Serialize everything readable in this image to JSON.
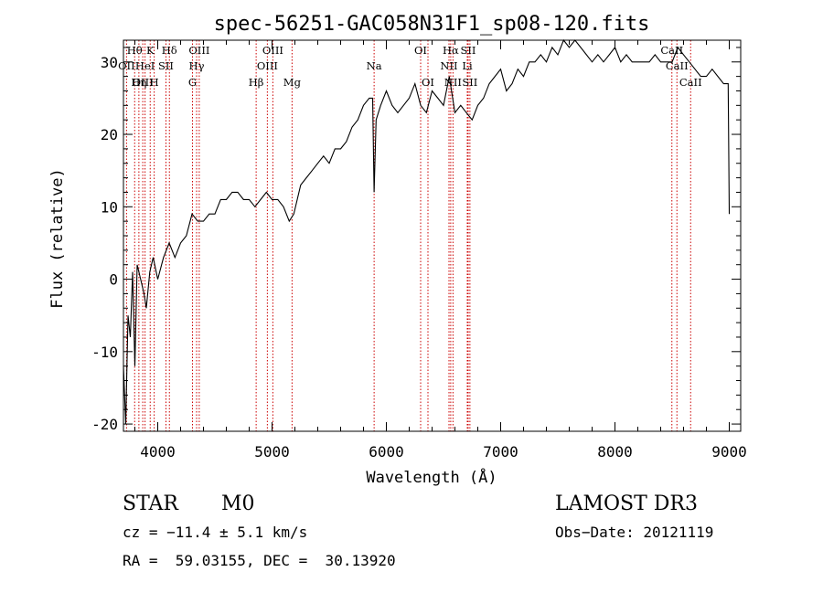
{
  "chart_data": {
    "type": "line",
    "title": "spec-56251-GAC058N31F1_sp08-120.fits",
    "xlabel": "Wavelength (Å)",
    "ylabel": "Flux (relative)",
    "xlim": [
      3700,
      9100
    ],
    "ylim": [
      -21,
      33
    ],
    "xticks": [
      4000,
      5000,
      6000,
      7000,
      8000,
      9000
    ],
    "yticks": [
      -20,
      -10,
      0,
      10,
      20,
      30
    ],
    "series": [
      {
        "name": "flux",
        "x": [
          3700,
          3720,
          3740,
          3760,
          3780,
          3800,
          3820,
          3850,
          3880,
          3900,
          3930,
          3960,
          4000,
          4050,
          4100,
          4150,
          4200,
          4250,
          4300,
          4350,
          4400,
          4450,
          4500,
          4550,
          4600,
          4650,
          4700,
          4750,
          4800,
          4850,
          4900,
          4950,
          5000,
          5050,
          5100,
          5150,
          5190,
          5250,
          5300,
          5350,
          5400,
          5450,
          5500,
          5550,
          5600,
          5650,
          5700,
          5750,
          5800,
          5850,
          5880,
          5893,
          5910,
          5950,
          6000,
          6050,
          6100,
          6150,
          6200,
          6250,
          6300,
          6350,
          6400,
          6450,
          6500,
          6550,
          6600,
          6650,
          6700,
          6750,
          6800,
          6850,
          6900,
          6950,
          7000,
          7050,
          7100,
          7150,
          7200,
          7250,
          7300,
          7350,
          7400,
          7450,
          7500,
          7550,
          7600,
          7650,
          7700,
          7750,
          7800,
          7850,
          7900,
          7950,
          8000,
          8050,
          8100,
          8150,
          8200,
          8250,
          8300,
          8350,
          8400,
          8450,
          8500,
          8550,
          8600,
          8650,
          8700,
          8750,
          8800,
          8850,
          8900,
          8950,
          8990,
          9000
        ],
        "y": [
          -12,
          -20,
          -5,
          -8,
          1,
          -12,
          2,
          0,
          -2,
          -4,
          1,
          3,
          0,
          3,
          5,
          3,
          5,
          6,
          9,
          8,
          8,
          9,
          9,
          11,
          11,
          12,
          12,
          11,
          11,
          10,
          11,
          12,
          11,
          11,
          10,
          8,
          9,
          13,
          14,
          15,
          16,
          17,
          16,
          18,
          18,
          19,
          21,
          22,
          24,
          25,
          25,
          12,
          22,
          24,
          26,
          24,
          23,
          24,
          25,
          27,
          24,
          23,
          26,
          25,
          24,
          28,
          23,
          24,
          23,
          22,
          24,
          25,
          27,
          28,
          29,
          26,
          27,
          29,
          28,
          30,
          30,
          31,
          30,
          32,
          31,
          33,
          32,
          33,
          32,
          31,
          30,
          31,
          30,
          31,
          32,
          30,
          31,
          30,
          30,
          30,
          30,
          31,
          30,
          30,
          30,
          32,
          31,
          30,
          29,
          28,
          28,
          29,
          28,
          27,
          27,
          9
        ]
      }
    ],
    "emission_lines": [
      {
        "label": "OII",
        "x": 3727,
        "row": 1
      },
      {
        "label": "Hθ",
        "x": 3798,
        "row": 0
      },
      {
        "label": "OIII",
        "x": 3869,
        "row": 2
      },
      {
        "label": "HeI",
        "x": 3889,
        "row": 1
      },
      {
        "label": "Hη",
        "x": 3835,
        "row": 2
      },
      {
        "label": "K",
        "x": 3934,
        "row": 0
      },
      {
        "label": "H",
        "x": 3969,
        "row": 2
      },
      {
        "label": "SII",
        "x": 4072,
        "row": 1
      },
      {
        "label": "Hδ",
        "x": 4102,
        "row": 0
      },
      {
        "label": "G",
        "x": 4304,
        "row": 2
      },
      {
        "label": "OIII",
        "x": 4363,
        "row": 0
      },
      {
        "label": "Hγ",
        "x": 4340,
        "row": 1
      },
      {
        "label": "Hβ",
        "x": 4861,
        "row": 2
      },
      {
        "label": "OIII",
        "x": 4959,
        "row": 1
      },
      {
        "label": "OIII",
        "x": 5007,
        "row": 0
      },
      {
        "label": "Mg",
        "x": 5175,
        "row": 2
      },
      {
        "label": "Na",
        "x": 5893,
        "row": 1
      },
      {
        "label": "OI",
        "x": 6300,
        "row": 0
      },
      {
        "label": "OI",
        "x": 6364,
        "row": 2
      },
      {
        "label": "NII",
        "x": 6548,
        "row": 1
      },
      {
        "label": "Hα",
        "x": 6563,
        "row": 0
      },
      {
        "label": "NII",
        "x": 6583,
        "row": 2
      },
      {
        "label": "Li",
        "x": 6708,
        "row": 1
      },
      {
        "label": "SII",
        "x": 6716,
        "row": 0
      },
      {
        "label": "SII",
        "x": 6731,
        "row": 2
      },
      {
        "label": "CaII",
        "x": 8498,
        "row": 0
      },
      {
        "label": "CaII",
        "x": 8542,
        "row": 1
      },
      {
        "label": "CaII",
        "x": 8662,
        "row": 2
      }
    ]
  },
  "info": {
    "class": "STAR",
    "subclass": "M0",
    "survey": "LAMOST DR3",
    "cz": "cz = −11.4 ± 5.1 km/s",
    "obs_date": "Obs−Date: 20121119",
    "radec": "RA =  59.03155, DEC =  30.13920"
  },
  "colors": {
    "line": "#000000",
    "marker": "#cc0000"
  }
}
